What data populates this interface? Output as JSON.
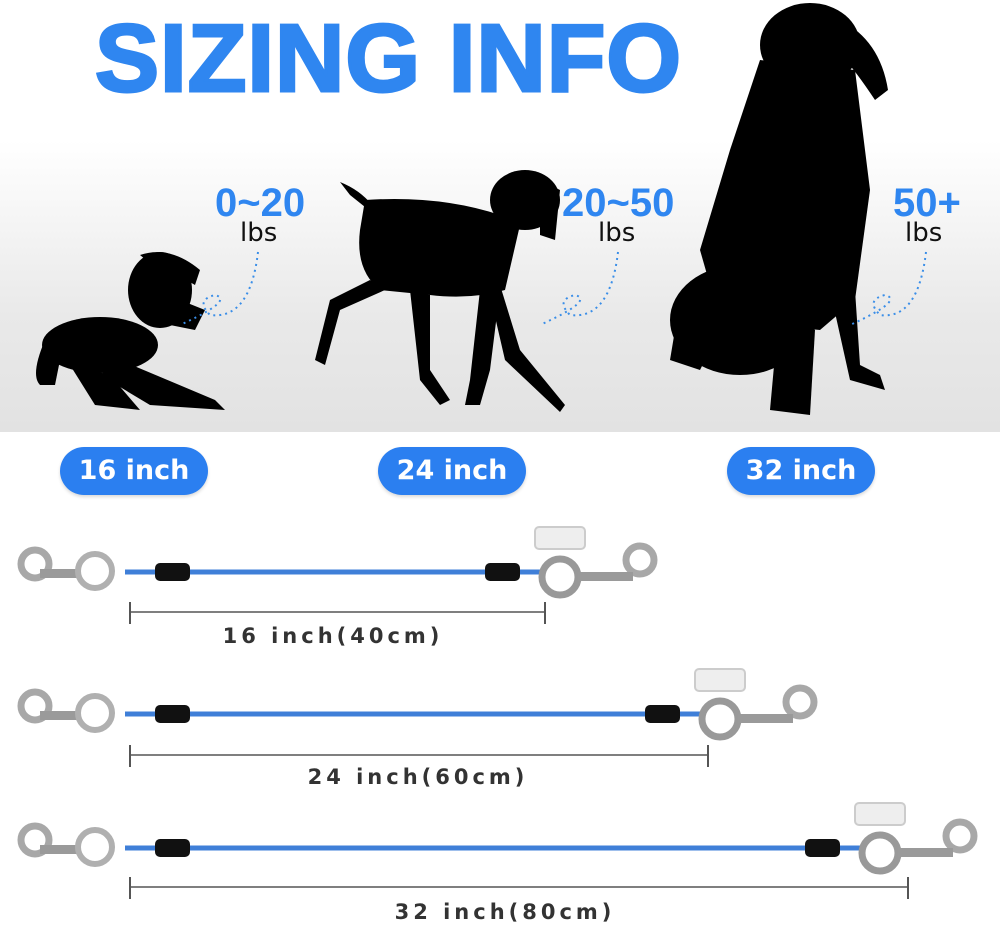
{
  "title": "SIZING INFO",
  "sizes": [
    {
      "weight": "0~20",
      "unit": "lbs",
      "pill": "16 inch",
      "measure": "16 inch(40cm)"
    },
    {
      "weight": "20~50",
      "unit": "lbs",
      "pill": "24 inch",
      "measure": "24 inch(60cm)"
    },
    {
      "weight": "50+",
      "unit": "lbs",
      "pill": "32 inch",
      "measure": "32 inch(80cm)"
    }
  ],
  "colors": {
    "accent": "#2f86f0",
    "cable": "#3f7fd8",
    "silhouette": "#000000"
  },
  "icons": [
    "dog-silhouette-small",
    "dog-silhouette-medium",
    "dog-silhouette-large",
    "snap-hook-icon",
    "seatbelt-buckle-icon"
  ]
}
